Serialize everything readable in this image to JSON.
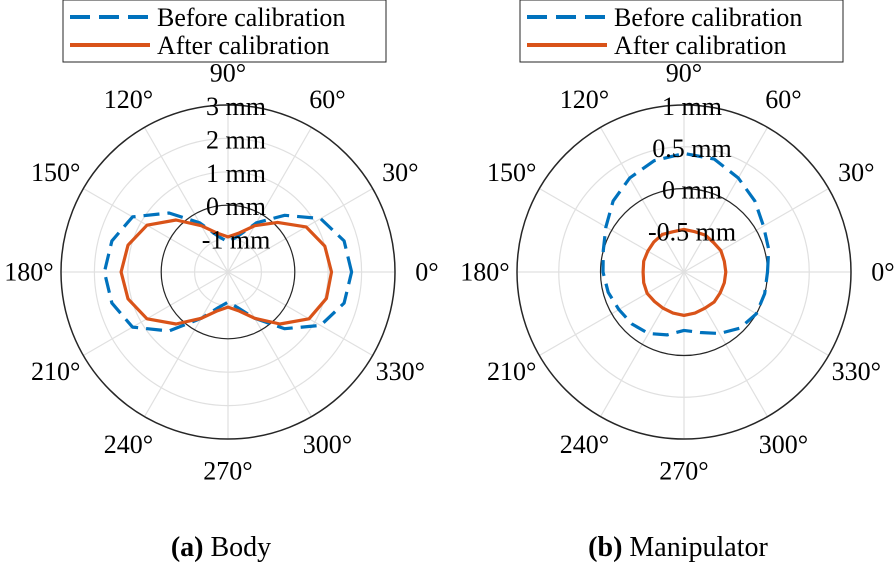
{
  "chart_data": [
    {
      "type": "polar-line",
      "caption_label": "(a)",
      "caption_text": " Body",
      "angle_ticks": [
        {
          "deg": 0,
          "label": "0°"
        },
        {
          "deg": 30,
          "label": "30°"
        },
        {
          "deg": 60,
          "label": "60°"
        },
        {
          "deg": 90,
          "label": "90°"
        },
        {
          "deg": 120,
          "label": "120°"
        },
        {
          "deg": 150,
          "label": "150°"
        },
        {
          "deg": 180,
          "label": "180°"
        },
        {
          "deg": 210,
          "label": "210°"
        },
        {
          "deg": 240,
          "label": "240°"
        },
        {
          "deg": 270,
          "label": "270°"
        },
        {
          "deg": 300,
          "label": "300°"
        },
        {
          "deg": 330,
          "label": "330°"
        }
      ],
      "rlim": [
        -2,
        3
      ],
      "rticks": [
        {
          "value": -1,
          "label": "-1 mm"
        },
        {
          "value": 0,
          "label": "0 mm"
        },
        {
          "value": 1,
          "label": "1 mm"
        },
        {
          "value": 2,
          "label": "2 mm"
        },
        {
          "value": 3,
          "label": "3 mm"
        }
      ],
      "zero_circle": 0,
      "legend": {
        "position": "top",
        "entries": [
          "Before calibration",
          "After calibration"
        ]
      },
      "series": [
        {
          "name": "Before calibration",
          "style": "dashed",
          "color": "#0072BD",
          "theta": [
            0,
            15,
            30,
            45,
            60,
            75,
            90,
            105,
            120,
            135,
            150,
            165,
            180,
            195,
            210,
            225,
            240,
            255,
            270,
            285,
            300,
            315,
            330,
            345
          ],
          "r": [
            1.7,
            1.6,
            1.2,
            0.4,
            -0.3,
            -0.9,
            -1.1,
            -0.9,
            -0.3,
            0.5,
            1.3,
            1.6,
            1.7,
            1.6,
            1.3,
            0.5,
            -0.4,
            -0.9,
            -1.1,
            -0.9,
            -0.4,
            0.4,
            1.2,
            1.6
          ]
        },
        {
          "name": "After calibration",
          "style": "solid",
          "color": "#D95319",
          "theta": [
            0,
            15,
            30,
            45,
            60,
            75,
            90,
            105,
            120,
            135,
            150,
            165,
            180,
            195,
            210,
            225,
            240,
            255,
            270,
            285,
            300,
            315,
            330,
            345
          ],
          "r": [
            1.1,
            1.0,
            0.7,
            0.1,
            -0.4,
            -0.8,
            -0.95,
            -0.8,
            -0.4,
            0.2,
            0.8,
            1.1,
            1.2,
            1.1,
            0.8,
            0.2,
            -0.4,
            -0.8,
            -0.95,
            -0.8,
            -0.4,
            0.2,
            0.8,
            1.05
          ]
        }
      ]
    },
    {
      "type": "polar-line",
      "caption_label": "(b)",
      "caption_text": " Manipulator",
      "angle_ticks": [
        {
          "deg": 0,
          "label": "0°"
        },
        {
          "deg": 30,
          "label": "30°"
        },
        {
          "deg": 60,
          "label": "60°"
        },
        {
          "deg": 90,
          "label": "90°"
        },
        {
          "deg": 120,
          "label": "120°"
        },
        {
          "deg": 150,
          "label": "150°"
        },
        {
          "deg": 180,
          "label": "180°"
        },
        {
          "deg": 210,
          "label": "210°"
        },
        {
          "deg": 240,
          "label": "240°"
        },
        {
          "deg": 270,
          "label": "270°"
        },
        {
          "deg": 300,
          "label": "300°"
        },
        {
          "deg": 330,
          "label": "330°"
        }
      ],
      "rlim": [
        -1,
        1
      ],
      "rticks": [
        {
          "value": -0.5,
          "label": "-0.5 mm"
        },
        {
          "value": 0,
          "label": "0 mm"
        },
        {
          "value": 0.5,
          "label": "0.5 mm"
        },
        {
          "value": 1,
          "label": "1 mm"
        }
      ],
      "zero_circle": 0,
      "legend": {
        "position": "top",
        "entries": [
          "Before calibration",
          "After calibration"
        ]
      },
      "series": [
        {
          "name": "Before calibration",
          "style": "dashed",
          "color": "#0072BD",
          "theta": [
            0,
            15,
            30,
            45,
            60,
            75,
            90,
            105,
            120,
            135,
            150,
            165,
            180,
            195,
            210,
            225,
            240,
            255,
            270,
            285,
            300,
            315,
            330,
            345
          ],
          "r": [
            0.0,
            0.05,
            0.1,
            0.2,
            0.3,
            0.4,
            0.42,
            0.38,
            0.3,
            0.2,
            0.08,
            0.0,
            -0.03,
            -0.06,
            -0.1,
            -0.12,
            -0.15,
            -0.22,
            -0.3,
            -0.25,
            -0.15,
            -0.05,
            0.0,
            0.0
          ]
        },
        {
          "name": "After calibration",
          "style": "solid",
          "color": "#D95319",
          "theta": [
            0,
            15,
            30,
            45,
            60,
            75,
            90,
            105,
            120,
            135,
            150,
            165,
            180,
            195,
            210,
            225,
            240,
            255,
            270,
            285,
            300,
            315,
            330,
            345
          ],
          "r": [
            -0.5,
            -0.5,
            -0.49,
            -0.5,
            -0.49,
            -0.5,
            -0.49,
            -0.5,
            -0.48,
            -0.49,
            -0.5,
            -0.5,
            -0.51,
            -0.5,
            -0.49,
            -0.5,
            -0.5,
            -0.49,
            -0.48,
            -0.49,
            -0.5,
            -0.49,
            -0.5,
            -0.5
          ]
        }
      ]
    }
  ]
}
